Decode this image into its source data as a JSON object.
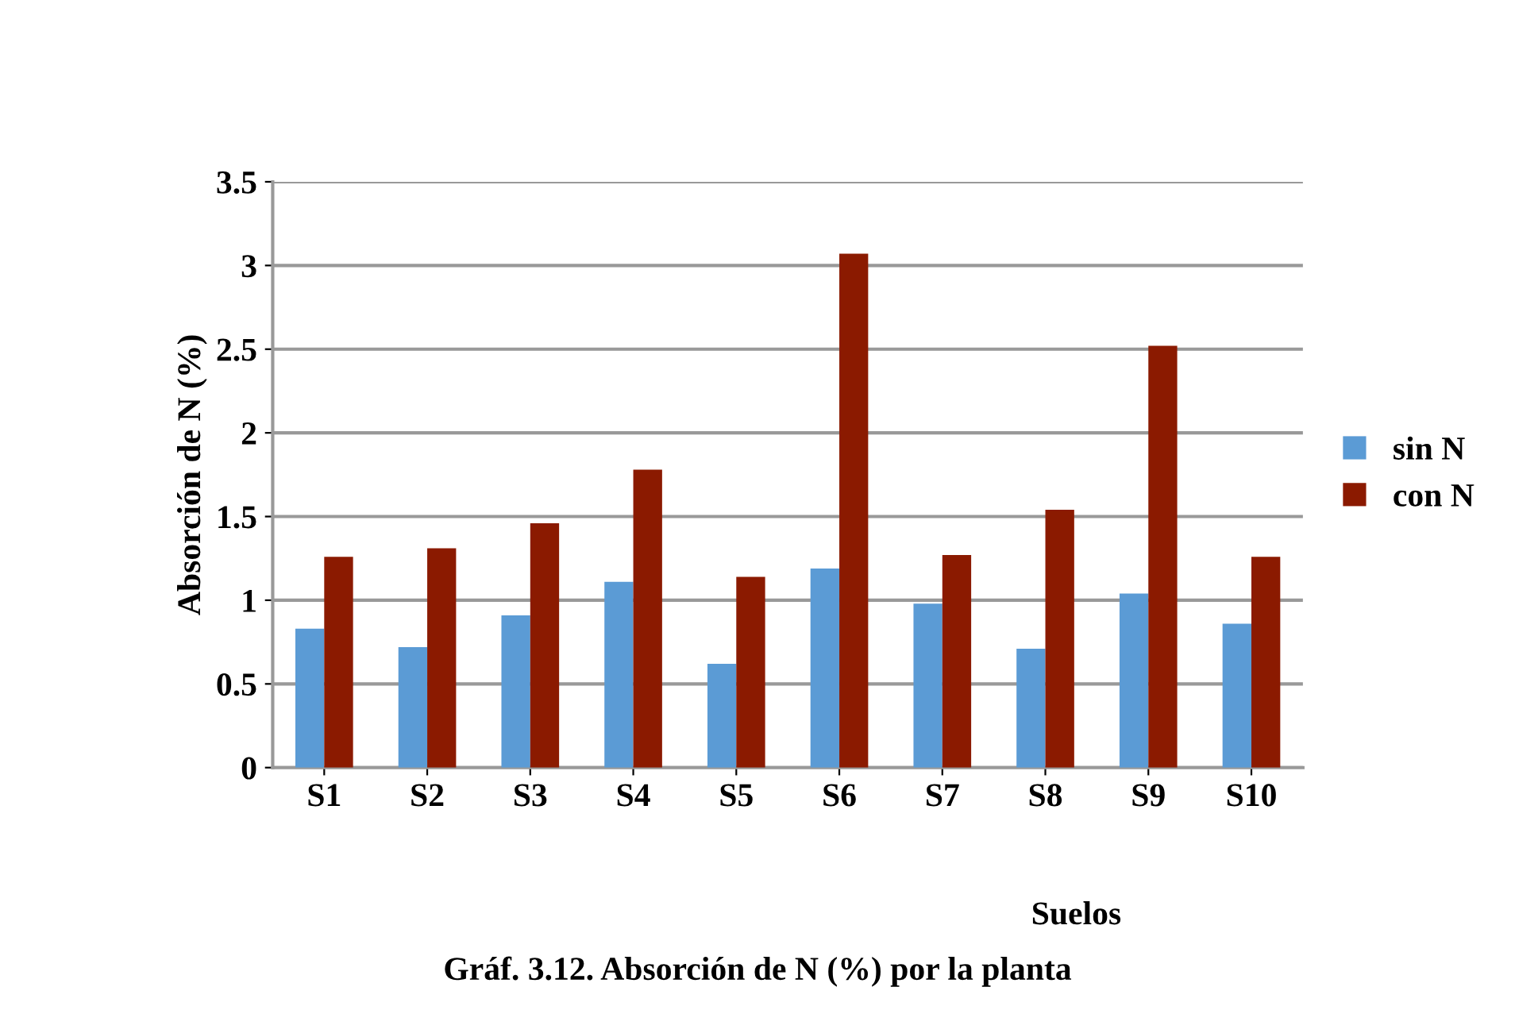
{
  "chart_data": {
    "type": "bar",
    "xlabel": "Suelos",
    "ylabel": "Absorción de N (%)",
    "categories": [
      "S1",
      "S2",
      "S3",
      "S4",
      "S5",
      "S6",
      "S7",
      "S8",
      "S9",
      "S10"
    ],
    "series": [
      {
        "name": "sin N",
        "color": "#5b9bd5",
        "values": [
          0.83,
          0.72,
          0.91,
          1.11,
          0.62,
          1.19,
          0.98,
          0.71,
          1.04,
          0.86
        ]
      },
      {
        "name": "con N",
        "color": "#8b1a00",
        "values": [
          1.26,
          1.31,
          1.46,
          1.78,
          1.14,
          3.07,
          1.27,
          1.54,
          2.52,
          1.26
        ]
      }
    ],
    "ylim": [
      0,
      3.5
    ],
    "yticks": [
      0,
      0.5,
      1,
      1.5,
      2,
      2.5,
      3,
      3.5
    ],
    "grid": "y",
    "legend": "right",
    "annotations": [
      "Gráf. 3.12. Absorción de N (%) por la planta"
    ]
  }
}
